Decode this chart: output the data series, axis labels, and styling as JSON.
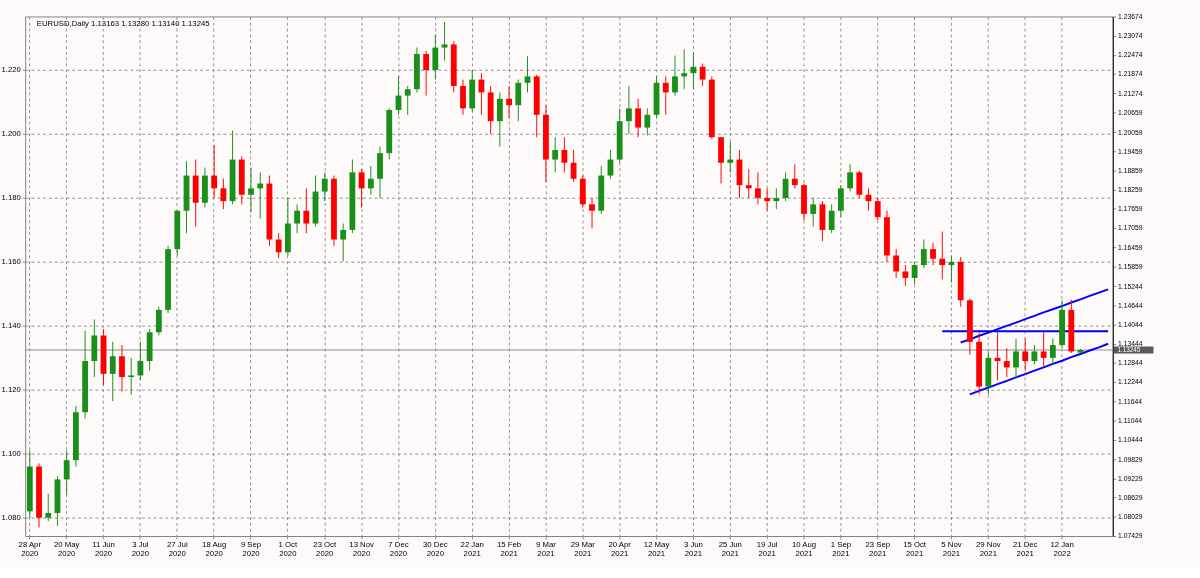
{
  "chart_data": {
    "type": "candlestick",
    "title": "EURUSD,Daily  1.13163 1.13280 1.13140 1.13245",
    "categories": [
      "28 Apr 2020",
      null,
      null,
      null,
      "20 May 2020",
      null,
      null,
      null,
      "11 Jun 2020",
      null,
      null,
      null,
      "3 Jul 2020",
      null,
      null,
      null,
      "27 Jul 2020",
      null,
      null,
      null,
      "18 Aug 2020",
      null,
      null,
      null,
      "9 Sep 2020",
      null,
      null,
      null,
      "1 Oct 2020",
      null,
      null,
      null,
      "23 Oct 2020",
      null,
      null,
      null,
      "13 Nov 2020",
      null,
      null,
      null,
      "7 Dec 2020",
      null,
      null,
      null,
      "30 Dec 2020",
      null,
      null,
      null,
      "22 Jan 2021",
      null,
      null,
      null,
      "15 Feb 2021",
      null,
      null,
      null,
      "9 Mar 2021",
      null,
      null,
      null,
      "29 Mar 2021",
      null,
      null,
      null,
      "20 Apr 2021",
      null,
      null,
      null,
      "12 May 2021",
      null,
      null,
      null,
      "3 Jun 2021",
      null,
      null,
      null,
      "25 Jun 2021",
      null,
      null,
      null,
      "19 Jul 2021",
      null,
      null,
      null,
      "10 Aug 2021",
      null,
      null,
      null,
      "1 Sep 2021",
      null,
      null,
      null,
      "23 Sep 2021",
      null,
      null,
      null,
      "15 Oct 2021",
      null,
      null,
      null,
      "5 Nov 2021",
      null,
      null,
      null,
      "29 Nov 2021",
      null,
      null,
      null,
      "21 Dec 2021",
      null,
      null,
      null,
      "12 Jan 2022",
      null,
      null,
      null,
      null,
      null
    ],
    "ohlc": [
      [
        1.082,
        1.101,
        1.08,
        1.096
      ],
      [
        1.096,
        1.097,
        1.077,
        1.08
      ],
      [
        1.08,
        1.0875,
        1.079,
        1.0815
      ],
      [
        1.0815,
        1.093,
        1.0775,
        1.092
      ],
      [
        1.092,
        1.101,
        1.087,
        1.098
      ],
      [
        1.098,
        1.115,
        1.096,
        1.113
      ],
      [
        1.113,
        1.1385,
        1.111,
        1.129
      ],
      [
        1.129,
        1.142,
        1.124,
        1.137
      ],
      [
        1.137,
        1.139,
        1.1215,
        1.125
      ],
      [
        1.125,
        1.135,
        1.1165,
        1.1305
      ],
      [
        1.1305,
        1.134,
        1.1195,
        1.124
      ],
      [
        1.124,
        1.13,
        1.1185,
        1.1245
      ],
      [
        1.1245,
        1.135,
        1.123,
        1.129
      ],
      [
        1.129,
        1.139,
        1.126,
        1.138
      ],
      [
        1.138,
        1.146,
        1.137,
        1.145
      ],
      [
        1.145,
        1.165,
        1.144,
        1.164
      ],
      [
        1.164,
        1.176,
        1.162,
        1.176
      ],
      [
        1.176,
        1.1915,
        1.169,
        1.187
      ],
      [
        1.187,
        1.192,
        1.171,
        1.1785
      ],
      [
        1.1785,
        1.1895,
        1.177,
        1.187
      ],
      [
        1.187,
        1.1965,
        1.18,
        1.183
      ],
      [
        1.183,
        1.186,
        1.1765,
        1.179
      ],
      [
        1.179,
        1.2011,
        1.178,
        1.192
      ],
      [
        1.192,
        1.193,
        1.178,
        1.181
      ],
      [
        1.181,
        1.1895,
        1.1755,
        1.183
      ],
      [
        1.183,
        1.188,
        1.1735,
        1.1845
      ],
      [
        1.1845,
        1.187,
        1.165,
        1.167
      ],
      [
        1.167,
        1.169,
        1.1612,
        1.163
      ],
      [
        1.163,
        1.18,
        1.162,
        1.172
      ],
      [
        1.172,
        1.178,
        1.169,
        1.176
      ],
      [
        1.176,
        1.183,
        1.169,
        1.172
      ],
      [
        1.172,
        1.187,
        1.171,
        1.182
      ],
      [
        1.182,
        1.188,
        1.179,
        1.186
      ],
      [
        1.186,
        1.187,
        1.165,
        1.167
      ],
      [
        1.167,
        1.172,
        1.1602,
        1.17
      ],
      [
        1.17,
        1.192,
        1.169,
        1.188
      ],
      [
        1.188,
        1.189,
        1.177,
        1.183
      ],
      [
        1.183,
        1.19,
        1.181,
        1.186
      ],
      [
        1.186,
        1.196,
        1.18,
        1.194
      ],
      [
        1.194,
        1.208,
        1.192,
        1.2075
      ],
      [
        1.2075,
        1.218,
        1.206,
        1.212
      ],
      [
        1.212,
        1.215,
        1.206,
        1.214
      ],
      [
        1.214,
        1.227,
        1.213,
        1.225
      ],
      [
        1.225,
        1.226,
        1.212,
        1.22
      ],
      [
        1.22,
        1.231,
        1.217,
        1.227
      ],
      [
        1.227,
        1.235,
        1.223,
        1.228
      ],
      [
        1.228,
        1.229,
        1.213,
        1.215
      ],
      [
        1.215,
        1.217,
        1.206,
        1.208
      ],
      [
        1.208,
        1.22,
        1.207,
        1.217
      ],
      [
        1.217,
        1.219,
        1.206,
        1.213
      ],
      [
        1.213,
        1.215,
        1.2,
        1.204
      ],
      [
        1.204,
        1.213,
        1.196,
        1.211
      ],
      [
        1.211,
        1.215,
        1.205,
        1.209
      ],
      [
        1.209,
        1.217,
        1.204,
        1.216
      ],
      [
        1.216,
        1.2243,
        1.213,
        1.218
      ],
      [
        1.218,
        1.2185,
        1.199,
        1.206
      ],
      [
        1.206,
        1.209,
        1.185,
        1.192
      ],
      [
        1.192,
        1.199,
        1.188,
        1.195
      ],
      [
        1.195,
        1.199,
        1.188,
        1.191
      ],
      [
        1.191,
        1.195,
        1.185,
        1.186
      ],
      [
        1.186,
        1.187,
        1.177,
        1.178
      ],
      [
        1.178,
        1.18,
        1.1705,
        1.176
      ],
      [
        1.176,
        1.19,
        1.175,
        1.187
      ],
      [
        1.187,
        1.195,
        1.186,
        1.192
      ],
      [
        1.192,
        1.208,
        1.191,
        1.204
      ],
      [
        1.204,
        1.215,
        1.2,
        1.208
      ],
      [
        1.208,
        1.211,
        1.199,
        1.202
      ],
      [
        1.202,
        1.208,
        1.1995,
        1.206
      ],
      [
        1.206,
        1.218,
        1.205,
        1.216
      ],
      [
        1.216,
        1.218,
        1.206,
        1.213
      ],
      [
        1.213,
        1.2245,
        1.212,
        1.218
      ],
      [
        1.218,
        1.2265,
        1.214,
        1.219
      ],
      [
        1.219,
        1.2255,
        1.214,
        1.221
      ],
      [
        1.221,
        1.222,
        1.215,
        1.217
      ],
      [
        1.217,
        1.218,
        1.1985,
        1.199
      ],
      [
        1.199,
        1.199,
        1.1845,
        1.191
      ],
      [
        1.191,
        1.1975,
        1.188,
        1.192
      ],
      [
        1.192,
        1.195,
        1.18,
        1.184
      ],
      [
        1.184,
        1.189,
        1.18,
        1.183
      ],
      [
        1.183,
        1.188,
        1.178,
        1.18
      ],
      [
        1.18,
        1.183,
        1.176,
        1.179
      ],
      [
        1.179,
        1.183,
        1.1765,
        1.18
      ],
      [
        1.18,
        1.188,
        1.179,
        1.186
      ],
      [
        1.186,
        1.1905,
        1.183,
        1.184
      ],
      [
        1.184,
        1.1845,
        1.173,
        1.175
      ],
      [
        1.175,
        1.18,
        1.171,
        1.178
      ],
      [
        1.178,
        1.179,
        1.1665,
        1.17
      ],
      [
        1.17,
        1.178,
        1.169,
        1.176
      ],
      [
        1.176,
        1.184,
        1.174,
        1.183
      ],
      [
        1.183,
        1.1905,
        1.182,
        1.188
      ],
      [
        1.188,
        1.1885,
        1.18,
        1.181
      ],
      [
        1.181,
        1.183,
        1.176,
        1.179
      ],
      [
        1.179,
        1.18,
        1.173,
        1.174
      ],
      [
        1.174,
        1.176,
        1.16,
        1.162
      ],
      [
        1.162,
        1.164,
        1.155,
        1.157
      ],
      [
        1.157,
        1.159,
        1.1525,
        1.155
      ],
      [
        1.155,
        1.16,
        1.153,
        1.159
      ],
      [
        1.159,
        1.167,
        1.158,
        1.164
      ],
      [
        1.164,
        1.166,
        1.159,
        1.161
      ],
      [
        1.161,
        1.1695,
        1.1545,
        1.159
      ],
      [
        1.159,
        1.162,
        1.1535,
        1.16
      ],
      [
        1.16,
        1.1615,
        1.146,
        1.148
      ],
      [
        1.148,
        1.1485,
        1.131,
        1.135
      ],
      [
        1.135,
        1.138,
        1.1186,
        1.121
      ],
      [
        1.121,
        1.132,
        1.1186,
        1.13
      ],
      [
        1.13,
        1.138,
        1.123,
        1.129
      ],
      [
        1.129,
        1.133,
        1.124,
        1.127
      ],
      [
        1.127,
        1.136,
        1.1235,
        1.132
      ],
      [
        1.132,
        1.136,
        1.126,
        1.129
      ],
      [
        1.129,
        1.134,
        1.128,
        1.132
      ],
      [
        1.132,
        1.138,
        1.127,
        1.13
      ],
      [
        1.13,
        1.136,
        1.128,
        1.134
      ],
      [
        1.134,
        1.148,
        1.133,
        1.145
      ],
      [
        1.145,
        1.1482,
        1.1315,
        1.132
      ],
      [
        1.13163,
        1.1328,
        1.1314,
        1.13245
      ],
      null,
      null,
      null
    ],
    "colors": [
      "#1a8f1a",
      "#ff0000",
      "#1a8f1a",
      "#1a8f1a",
      "#1a8f1a",
      "#1a8f1a",
      "#1a8f1a",
      "#1a8f1a",
      "#ff0000",
      "#1a8f1a",
      "#ff0000",
      "#1a8f1a",
      "#1a8f1a",
      "#1a8f1a",
      "#1a8f1a",
      "#1a8f1a",
      "#1a8f1a",
      "#1a8f1a",
      "#ff0000",
      "#1a8f1a",
      "#ff0000",
      "#ff0000",
      "#1a8f1a",
      "#ff0000",
      "#1a8f1a",
      "#1a8f1a",
      "#ff0000",
      "#ff0000",
      "#1a8f1a",
      "#1a8f1a",
      "#ff0000",
      "#1a8f1a",
      "#1a8f1a",
      "#ff0000",
      "#1a8f1a",
      "#1a8f1a",
      "#ff0000",
      "#1a8f1a",
      "#1a8f1a",
      "#1a8f1a",
      "#1a8f1a",
      "#1a8f1a",
      "#1a8f1a",
      "#ff0000",
      "#1a8f1a",
      "#1a8f1a",
      "#ff0000",
      "#ff0000",
      "#1a8f1a",
      "#ff0000",
      "#ff0000",
      "#1a8f1a",
      "#ff0000",
      "#1a8f1a",
      "#1a8f1a",
      "#ff0000",
      "#ff0000",
      "#1a8f1a",
      "#ff0000",
      "#ff0000",
      "#ff0000",
      "#ff0000",
      "#1a8f1a",
      "#1a8f1a",
      "#1a8f1a",
      "#1a8f1a",
      "#ff0000",
      "#1a8f1a",
      "#1a8f1a",
      "#ff0000",
      "#1a8f1a",
      "#1a8f1a",
      "#1a8f1a",
      "#ff0000",
      "#ff0000",
      "#ff0000",
      "#1a8f1a",
      "#ff0000",
      "#ff0000",
      "#ff0000",
      "#ff0000",
      "#1a8f1a",
      "#1a8f1a",
      "#ff0000",
      "#ff0000",
      "#1a8f1a",
      "#ff0000",
      "#1a8f1a",
      "#1a8f1a",
      "#1a8f1a",
      "#ff0000",
      "#ff0000",
      "#ff0000",
      "#ff0000",
      "#ff0000",
      "#ff0000",
      "#1a8f1a",
      "#1a8f1a",
      "#ff0000",
      "#ff0000",
      "#1a8f1a",
      "#ff0000",
      "#ff0000",
      "#ff0000",
      "#1a8f1a",
      "#ff0000",
      "#ff0000",
      "#1a8f1a",
      "#ff0000",
      "#1a8f1a",
      "#ff0000",
      "#1a8f1a",
      "#1a8f1a",
      "#ff0000",
      "#1a8f1a",
      null,
      null,
      null
    ],
    "series": [
      {
        "type": "line",
        "color": "#0000ff",
        "values": [
          null,
          null,
          null,
          null,
          null,
          null,
          null,
          null,
          null,
          null,
          null,
          null,
          null,
          null,
          null,
          null,
          null,
          null,
          null,
          null,
          null,
          null,
          null,
          null,
          null,
          null,
          null,
          null,
          null,
          null,
          null,
          null,
          null,
          null,
          null,
          null,
          null,
          null,
          null,
          null,
          null,
          null,
          null,
          null,
          null,
          null,
          null,
          null,
          null,
          null,
          null,
          null,
          null,
          null,
          null,
          null,
          null,
          null,
          null,
          null,
          null,
          null,
          null,
          null,
          null,
          null,
          null,
          null,
          null,
          null,
          null,
          null,
          null,
          null,
          null,
          null,
          null,
          null,
          null,
          null,
          null,
          null,
          null,
          null,
          null,
          null,
          null,
          null,
          null,
          null,
          null,
          null,
          null,
          null,
          null,
          null,
          null,
          null,
          null,
          null,
          null,
          1.1348,
          1.1358,
          1.1369,
          1.1379,
          1.139,
          1.14,
          1.141,
          1.1421,
          1.1431,
          1.1442,
          1.1452,
          1.1462,
          1.1473,
          1.1483,
          1.1494,
          1.1504,
          1.1514
        ]
      },
      {
        "type": "line",
        "color": "#0000ff",
        "values": [
          null,
          null,
          null,
          null,
          null,
          null,
          null,
          null,
          null,
          null,
          null,
          null,
          null,
          null,
          null,
          null,
          null,
          null,
          null,
          null,
          null,
          null,
          null,
          null,
          null,
          null,
          null,
          null,
          null,
          null,
          null,
          null,
          null,
          null,
          null,
          null,
          null,
          null,
          null,
          null,
          null,
          null,
          null,
          null,
          null,
          null,
          null,
          null,
          null,
          null,
          null,
          null,
          null,
          null,
          null,
          null,
          null,
          null,
          null,
          null,
          null,
          null,
          null,
          null,
          null,
          null,
          null,
          null,
          null,
          null,
          null,
          null,
          null,
          null,
          null,
          null,
          null,
          null,
          null,
          null,
          null,
          null,
          null,
          null,
          null,
          null,
          null,
          null,
          null,
          null,
          null,
          null,
          null,
          null,
          null,
          null,
          null,
          null,
          null,
          null,
          null,
          null,
          1.1186,
          1.1197,
          1.1207,
          1.1218,
          1.1228,
          1.1239,
          1.1249,
          1.126,
          1.127,
          1.1281,
          1.1291,
          1.1302,
          1.1312,
          1.1323,
          1.1333,
          1.1344
        ]
      },
      {
        "type": "line",
        "color": "#0000ff",
        "values": [
          null,
          null,
          null,
          null,
          null,
          null,
          null,
          null,
          null,
          null,
          null,
          null,
          null,
          null,
          null,
          null,
          null,
          null,
          null,
          null,
          null,
          null,
          null,
          null,
          null,
          null,
          null,
          null,
          null,
          null,
          null,
          null,
          null,
          null,
          null,
          null,
          null,
          null,
          null,
          null,
          null,
          null,
          null,
          null,
          null,
          null,
          null,
          null,
          null,
          null,
          null,
          null,
          null,
          null,
          null,
          null,
          null,
          null,
          null,
          null,
          null,
          null,
          null,
          null,
          null,
          null,
          null,
          null,
          null,
          null,
          null,
          null,
          null,
          null,
          null,
          null,
          null,
          null,
          null,
          null,
          null,
          null,
          null,
          null,
          null,
          null,
          null,
          null,
          null,
          null,
          null,
          null,
          null,
          null,
          null,
          null,
          null,
          null,
          null,
          1.1383,
          1.1383,
          1.1383,
          1.1383,
          1.1383,
          1.1383,
          1.1383,
          1.1383,
          1.1383,
          1.1383,
          1.1383,
          1.1383,
          1.1383,
          1.1383,
          1.1383,
          1.1383,
          1.1383,
          1.1383,
          1.1383
        ]
      }
    ],
    "ref_lines": [
      {
        "axis": "y",
        "value": 1.13245,
        "label": "1.13245",
        "color": "#8c8c8c"
      }
    ],
    "ylim": [
      1.07429,
      1.23674
    ],
    "yticks": [
      {
        "value": 1.08,
        "label": "1.080"
      },
      {
        "value": 1.1,
        "label": "1.100"
      },
      {
        "value": 1.12,
        "label": "1.120"
      },
      {
        "value": 1.14,
        "label": "1.140"
      },
      {
        "value": 1.16,
        "label": "1.160"
      },
      {
        "value": 1.18,
        "label": "1.180"
      },
      {
        "value": 1.2,
        "label": "1.200"
      },
      {
        "value": 1.22,
        "label": "1.220"
      }
    ],
    "y2lim": [
      1.07429,
      1.23674
    ],
    "y2ticks": [
      1.07429,
      1.08029,
      1.08629,
      1.09229,
      1.09829,
      1.10444,
      1.11044,
      1.11644,
      1.12244,
      1.12844,
      1.13444,
      1.14044,
      1.14644,
      1.15244,
      1.15859,
      1.16459,
      1.17059,
      1.17659,
      1.18259,
      1.18859,
      1.19459,
      1.20059,
      1.20659,
      1.21274,
      1.21874,
      1.22474,
      1.23074,
      1.23674
    ],
    "grid": true
  }
}
